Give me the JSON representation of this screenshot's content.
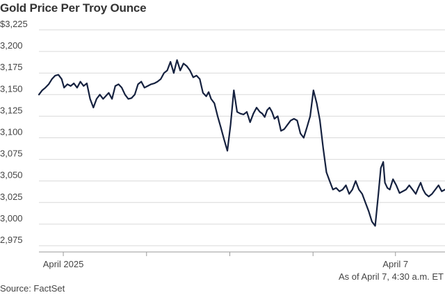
{
  "title": "Gold Price Per Troy Ounce",
  "note": "As of April 7, 4:30 a.m. ET",
  "source": "Source: FactSet",
  "chart_data": {
    "type": "line",
    "title": "Gold Price Per Troy Ounce",
    "xlabel": "",
    "ylabel": "",
    "ylim": [
      2965,
      3230
    ],
    "yticks": [
      2975,
      3000,
      3025,
      3050,
      3075,
      3100,
      3125,
      3150,
      3175,
      3200,
      3225
    ],
    "ytick_labels": [
      "2,975",
      "3,000",
      "3,025",
      "3,050",
      "3,075",
      "3,100",
      "3,125",
      "3,150",
      "3,175",
      "3,200",
      "$3,225"
    ],
    "xlim": [
      0,
      1
    ],
    "xtick_positions": [
      0.06,
      0.265,
      0.47,
      0.675,
      0.878
    ],
    "xtick_labels": [
      "April 2025",
      "",
      "",
      "",
      "April 7"
    ],
    "grid": true,
    "line_color": "#15213f",
    "series": [
      {
        "x": [
          0.0,
          0.008,
          0.016,
          0.024,
          0.032,
          0.04,
          0.048,
          0.056,
          0.062,
          0.07,
          0.078,
          0.086,
          0.094,
          0.102,
          0.11,
          0.118,
          0.126,
          0.134,
          0.142,
          0.15,
          0.158,
          0.164,
          0.172,
          0.18,
          0.188,
          0.196,
          0.204,
          0.212,
          0.22,
          0.228,
          0.236,
          0.244,
          0.252,
          0.26,
          0.268,
          0.276,
          0.284,
          0.292,
          0.3,
          0.308,
          0.316,
          0.324,
          0.332,
          0.34,
          0.348,
          0.356,
          0.364,
          0.372,
          0.38,
          0.388,
          0.396,
          0.404,
          0.412,
          0.418,
          0.424,
          0.432,
          0.44,
          0.448,
          0.456,
          0.464,
          0.472,
          0.48,
          0.488,
          0.496,
          0.504,
          0.512,
          0.52,
          0.528,
          0.536,
          0.544,
          0.55,
          0.556,
          0.562,
          0.568,
          0.574,
          0.58,
          0.588,
          0.596,
          0.604,
          0.612,
          0.62,
          0.628,
          0.636,
          0.644,
          0.652,
          0.66,
          0.668,
          0.676,
          0.684,
          0.692,
          0.7,
          0.708,
          0.716,
          0.724,
          0.732,
          0.74,
          0.748,
          0.756,
          0.764,
          0.772,
          0.78,
          0.788,
          0.796,
          0.804,
          0.812,
          0.82,
          0.828,
          0.836,
          0.842,
          0.848,
          0.852,
          0.858,
          0.864,
          0.872,
          0.88,
          0.888,
          0.896,
          0.904,
          0.912,
          0.92,
          0.928,
          0.934,
          0.94,
          0.946,
          0.952,
          0.96,
          0.968,
          0.976,
          0.984,
          0.992,
          1.0
        ],
        "values": [
          3150,
          3155,
          3158,
          3162,
          3168,
          3172,
          3173,
          3168,
          3158,
          3162,
          3160,
          3163,
          3158,
          3165,
          3160,
          3163,
          3145,
          3135,
          3145,
          3150,
          3145,
          3148,
          3152,
          3145,
          3160,
          3162,
          3158,
          3150,
          3145,
          3146,
          3150,
          3162,
          3165,
          3158,
          3160,
          3162,
          3163,
          3165,
          3168,
          3175,
          3178,
          3188,
          3175,
          3190,
          3178,
          3186,
          3183,
          3178,
          3170,
          3172,
          3168,
          3152,
          3148,
          3153,
          3145,
          3140,
          3125,
          3112,
          3098,
          3085,
          3115,
          3155,
          3130,
          3128,
          3127,
          3130,
          3118,
          3128,
          3135,
          3130,
          3128,
          3124,
          3132,
          3135,
          3130,
          3122,
          3125,
          3108,
          3110,
          3115,
          3120,
          3122,
          3120,
          3105,
          3100,
          3112,
          3125,
          3155,
          3140,
          3120,
          3088,
          3060,
          3050,
          3040,
          3042,
          3038,
          3040,
          3045,
          3035,
          3040,
          3050,
          3040,
          3035,
          3025,
          3015,
          3003,
          2998,
          3035,
          3065,
          3072,
          3048,
          3042,
          3040,
          3052,
          3045,
          3036,
          3038,
          3040,
          3045,
          3040,
          3035,
          3042,
          3048,
          3040,
          3035,
          3032,
          3035,
          3040,
          3045,
          3038,
          3040
        ]
      }
    ]
  }
}
